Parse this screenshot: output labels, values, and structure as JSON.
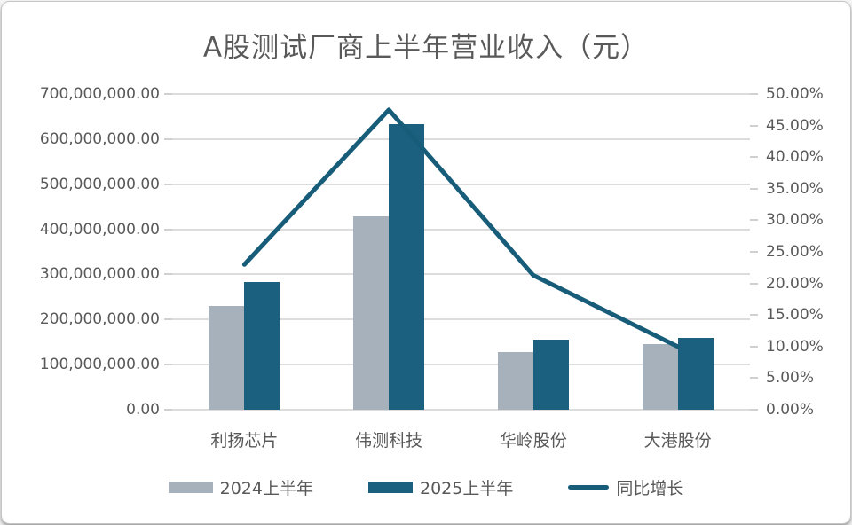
{
  "title": "A股测试厂商上半年营业收入（元）",
  "colors": {
    "bar_2024": "#a6b1bc",
    "bar_2025": "#1b607f",
    "growth_line": "#175d7a",
    "grid": "#dcdcdc",
    "text": "#595959",
    "card_border": "#c6c6c6",
    "background": "#ffffff"
  },
  "chart_data": {
    "type": "bar",
    "subtype": "combo-bar-line-dual-axis",
    "title": "A股测试厂商上半年营业收入（元）",
    "categories": [
      "利扬芯片",
      "伟测科技",
      "华岭股份",
      "大港股份"
    ],
    "series": [
      {
        "name": "2024上半年",
        "type": "bar",
        "axis": "left",
        "color": "#a6b1bc",
        "values": [
          230000000,
          429000000,
          128000000,
          145000000
        ]
      },
      {
        "name": "2025上半年",
        "type": "bar",
        "axis": "left",
        "color": "#1b607f",
        "values": [
          283000000,
          633000000,
          155000000,
          159000000
        ]
      },
      {
        "name": "同比增长",
        "type": "line",
        "axis": "right",
        "color": "#175d7a",
        "values": [
          0.23,
          0.475,
          0.213,
          0.1
        ]
      }
    ],
    "left_axis": {
      "min": 0,
      "max": 700000000,
      "step": 100000000,
      "ticks_ascending": [
        "0.00",
        "100,000,000.00",
        "200,000,000.00",
        "300,000,000.00",
        "400,000,000.00",
        "500,000,000.00",
        "600,000,000.00",
        "700,000,000.00"
      ]
    },
    "right_axis": {
      "min": 0,
      "max": 0.5,
      "step": 0.05,
      "ticks_ascending": [
        "0.00%",
        "5.00%",
        "10.00%",
        "15.00%",
        "20.00%",
        "25.00%",
        "30.00%",
        "35.00%",
        "40.00%",
        "45.00%",
        "50.00%"
      ]
    },
    "grid": true,
    "legend_position": "bottom"
  }
}
